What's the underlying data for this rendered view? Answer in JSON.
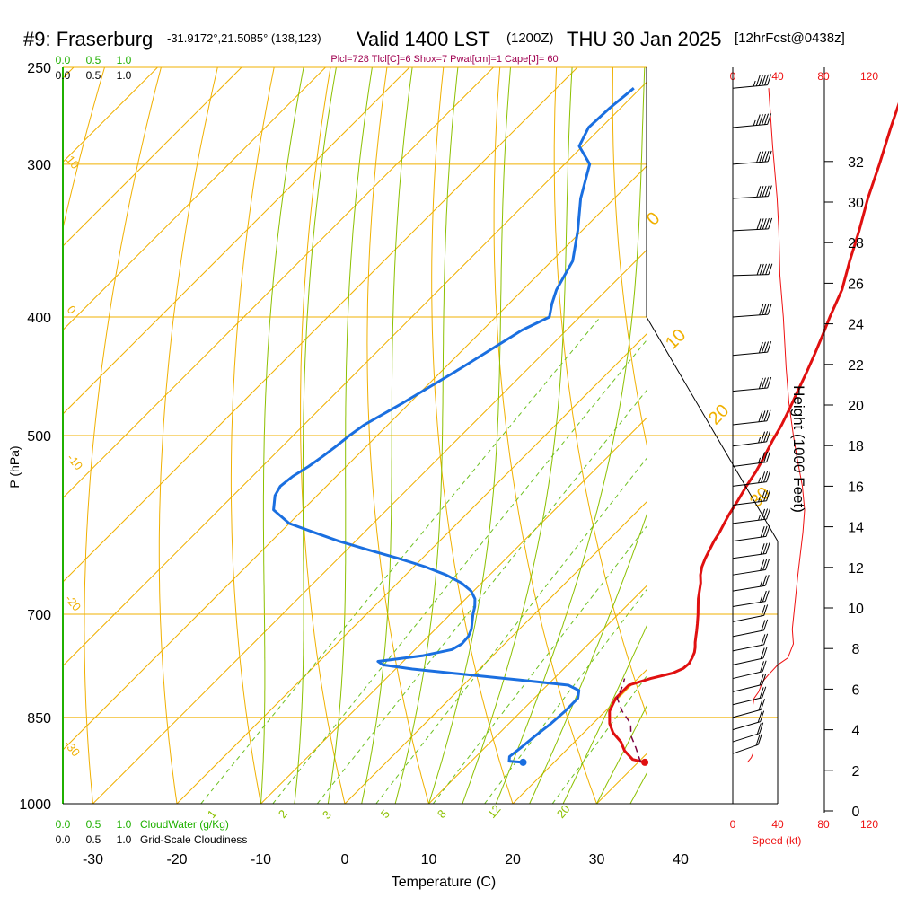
{
  "title": {
    "station": "#9: Fraserburg",
    "coords": "-31.9172°,21.5085° (138,123)",
    "valid": "Valid 1400 LST",
    "zulu": "(1200Z)",
    "date": "THU 30 Jan 2025",
    "forecast": "[12hrFcst@0438z]"
  },
  "params_line": "Plcl=728 Tlcl[C]=6 Shox=7 Pwat[cm]=1 Cape[J]= 60",
  "chart_data": {
    "type": "line",
    "subtype": "skew-t log-p sounding",
    "xlabel": "Temperature (C)",
    "ylabel": "P (hPa)",
    "right_axis_label": "Height (1000 Feet)",
    "speed_label": "Speed (kt)",
    "cloud_water_label": "CloudWater (g/Kg)",
    "cloudiness_label": "Grid-Scale Cloudiness",
    "xlim": [
      -35,
      36
    ],
    "pressure_range": [
      1000,
      250
    ],
    "x_ticks": [
      "-30",
      "-20",
      "-10",
      "0",
      "10",
      "20",
      "30",
      "40"
    ],
    "pressure_ticks": [
      "250",
      "300",
      "400",
      "500",
      "700",
      "850",
      "1000"
    ],
    "height_ticks": [
      "0",
      "2",
      "4",
      "6",
      "8",
      "10",
      "12",
      "14",
      "16",
      "18",
      "20",
      "22",
      "24",
      "26",
      "28",
      "30",
      "32"
    ],
    "speed_ticks": [
      "0",
      "40",
      "80",
      "120"
    ],
    "cloud_ticks_top": [
      "0.0",
      "0.5",
      "1.0"
    ],
    "cloud_ticks_bottom": [
      "0.0",
      "0.5",
      "1.0"
    ],
    "mixing_ratio_labels": [
      "1",
      "2",
      "3",
      "5",
      "8",
      "12",
      "20"
    ],
    "dry_adiabat_labels": [
      "10",
      "0",
      "-10",
      "-20",
      "-30"
    ],
    "moist_adiabat_labels": [
      "0",
      "10",
      "20",
      "30"
    ],
    "colors": {
      "temperature": "#e01010",
      "dewpoint": "#1a6fe0",
      "isotherm": "#f0b000",
      "dry_adiabat": "#f0b000",
      "moist_adiabat": "#8cc000",
      "mixing_ratio": "#6cc020",
      "parcel": "#7a0040",
      "title_params": "#a00050",
      "cloud": "#20b000",
      "speed": "#ee1111"
    },
    "series": [
      {
        "name": "Temperature",
        "unit": "C",
        "points": [
          [
            30.8,
            925
          ],
          [
            29,
            920
          ],
          [
            27,
            905
          ],
          [
            25.5,
            890
          ],
          [
            23.5,
            875
          ],
          [
            22,
            860
          ],
          [
            20.5,
            840
          ],
          [
            19.7,
            820
          ],
          [
            19.7,
            800
          ],
          [
            21.5,
            790
          ],
          [
            23.5,
            782
          ],
          [
            24.2,
            775
          ],
          [
            24.3,
            768
          ],
          [
            24,
            760
          ],
          [
            23.6,
            752
          ],
          [
            23.1,
            745
          ],
          [
            22.5,
            738
          ],
          [
            21.9,
            730
          ],
          [
            21.3,
            722
          ],
          [
            20.5,
            712
          ],
          [
            19.5,
            700
          ],
          [
            18.6,
            690
          ],
          [
            17.7,
            680
          ],
          [
            16.9,
            670
          ],
          [
            16.1,
            660
          ],
          [
            15.1,
            650
          ],
          [
            14.3,
            640
          ],
          [
            13.7,
            630
          ],
          [
            13.2,
            620
          ],
          [
            12.7,
            610
          ],
          [
            12.3,
            600
          ],
          [
            11.8,
            590
          ],
          [
            11.3,
            580
          ],
          [
            10.7,
            565
          ],
          [
            10,
            550
          ],
          [
            9.4,
            535
          ],
          [
            8.6,
            520
          ],
          [
            7.7,
            505
          ],
          [
            6.9,
            490
          ],
          [
            5.9,
            475
          ],
          [
            4.8,
            460
          ],
          [
            3.7,
            445
          ],
          [
            2.5,
            430
          ],
          [
            1.2,
            415
          ],
          [
            -0.2,
            400
          ],
          [
            -2,
            380
          ],
          [
            -4.5,
            360
          ],
          [
            -7,
            340
          ],
          [
            -9.8,
            320
          ],
          [
            -12.5,
            300
          ],
          [
            -15.5,
            280
          ],
          [
            -18.6,
            260
          ]
        ]
      },
      {
        "name": "Dewpoint",
        "unit": "C",
        "points": [
          [
            16.3,
            925
          ],
          [
            14.5,
            923
          ],
          [
            14,
            915
          ],
          [
            14.3,
            900
          ],
          [
            14.6,
            880
          ],
          [
            15,
            860
          ],
          [
            15.2,
            840
          ],
          [
            15.2,
            820
          ],
          [
            14.4,
            808
          ],
          [
            12.5,
            800
          ],
          [
            6,
            792
          ],
          [
            -8,
            776
          ],
          [
            -12,
            770
          ],
          [
            -13,
            765
          ],
          [
            -8.4,
            757
          ],
          [
            -5.6,
            748
          ],
          [
            -5.1,
            740
          ],
          [
            -5.2,
            730
          ],
          [
            -5.7,
            720
          ],
          [
            -6.5,
            710
          ],
          [
            -7.3,
            700
          ],
          [
            -8,
            690
          ],
          [
            -8.9,
            680
          ],
          [
            -10.3,
            670
          ],
          [
            -12.4,
            660
          ],
          [
            -15.2,
            650
          ],
          [
            -18.7,
            640
          ],
          [
            -22.9,
            630
          ],
          [
            -27.5,
            620
          ],
          [
            -32,
            610
          ],
          [
            -36,
            600
          ],
          [
            -40,
            590
          ],
          [
            -43.5,
            575
          ],
          [
            -45,
            560
          ],
          [
            -45.5,
            550
          ],
          [
            -45.2,
            540
          ],
          [
            -44.5,
            530
          ],
          [
            -44,
            520
          ],
          [
            -43.6,
            510
          ],
          [
            -43.3,
            500
          ],
          [
            -42.8,
            490
          ],
          [
            -40.8,
            470
          ],
          [
            -38,
            440
          ],
          [
            -35.3,
            410
          ],
          [
            -33.6,
            400
          ],
          [
            -34.9,
            390
          ],
          [
            -36,
            380
          ],
          [
            -37.5,
            360
          ],
          [
            -40.5,
            340
          ],
          [
            -44,
            320
          ],
          [
            -47,
            300
          ],
          [
            -50.4,
            290
          ],
          [
            -51.5,
            280
          ],
          [
            -51.3,
            270
          ],
          [
            -50.8,
            260
          ]
        ]
      },
      {
        "name": "Parcel",
        "unit": "C",
        "style": "dashed",
        "points": [
          [
            30.3,
            925
          ],
          [
            28,
            900
          ],
          [
            26,
            880
          ],
          [
            24.5,
            860
          ],
          [
            22,
            840
          ],
          [
            19.9,
            820
          ],
          [
            19,
            800
          ],
          [
            18.4,
            790
          ]
        ]
      }
    ],
    "surface_markers": [
      {
        "name": "surface-temperature",
        "temp": 30.8,
        "p": 925
      },
      {
        "name": "surface-dewpoint",
        "temp": 16.3,
        "p": 925
      }
    ],
    "height_profile_ft": [
      [
        2600,
        925
      ],
      [
        3300,
        917
      ],
      [
        3600,
        910
      ],
      [
        3600,
        830
      ],
      [
        3800,
        820
      ],
      [
        4600,
        810
      ],
      [
        5300,
        795
      ],
      [
        6300,
        785
      ],
      [
        8000,
        770
      ],
      [
        9800,
        760
      ],
      [
        10800,
        740
      ],
      [
        10600,
        720
      ],
      [
        11600,
        650
      ],
      [
        12500,
        600
      ],
      [
        12800,
        575
      ],
      [
        12400,
        550
      ],
      [
        11400,
        520
      ],
      [
        10800,
        500
      ],
      [
        10000,
        470
      ],
      [
        9500,
        440
      ],
      [
        9000,
        400
      ],
      [
        8400,
        370
      ],
      [
        8200,
        340
      ],
      [
        7900,
        320
      ],
      [
        7100,
        290
      ],
      [
        6400,
        260
      ]
    ],
    "wind_barbs": [
      {
        "p": 260,
        "dir": 255,
        "speed": 55
      },
      {
        "p": 280,
        "dir": 255,
        "speed": 55
      },
      {
        "p": 300,
        "dir": 258,
        "speed": 50
      },
      {
        "p": 320,
        "dir": 260,
        "speed": 50
      },
      {
        "p": 340,
        "dir": 262,
        "speed": 50
      },
      {
        "p": 370,
        "dir": 265,
        "speed": 50
      },
      {
        "p": 400,
        "dir": 258,
        "speed": 40
      },
      {
        "p": 430,
        "dir": 255,
        "speed": 40
      },
      {
        "p": 460,
        "dir": 255,
        "speed": 40
      },
      {
        "p": 490,
        "dir": 252,
        "speed": 40
      },
      {
        "p": 510,
        "dir": 250,
        "speed": 35
      },
      {
        "p": 530,
        "dir": 250,
        "speed": 35
      },
      {
        "p": 550,
        "dir": 250,
        "speed": 35
      },
      {
        "p": 570,
        "dir": 250,
        "speed": 35
      },
      {
        "p": 590,
        "dir": 250,
        "speed": 35
      },
      {
        "p": 610,
        "dir": 248,
        "speed": 30
      },
      {
        "p": 630,
        "dir": 248,
        "speed": 30
      },
      {
        "p": 650,
        "dir": 246,
        "speed": 30
      },
      {
        "p": 670,
        "dir": 245,
        "speed": 25
      },
      {
        "p": 690,
        "dir": 245,
        "speed": 25
      },
      {
        "p": 710,
        "dir": 240,
        "speed": 20
      },
      {
        "p": 730,
        "dir": 240,
        "speed": 20
      },
      {
        "p": 750,
        "dir": 240,
        "speed": 20
      },
      {
        "p": 770,
        "dir": 238,
        "speed": 20
      },
      {
        "p": 790,
        "dir": 236,
        "speed": 20
      },
      {
        "p": 810,
        "dir": 235,
        "speed": 20
      },
      {
        "p": 830,
        "dir": 235,
        "speed": 20
      },
      {
        "p": 850,
        "dir": 232,
        "speed": 20
      },
      {
        "p": 870,
        "dir": 230,
        "speed": 20
      },
      {
        "p": 890,
        "dir": 228,
        "speed": 20
      },
      {
        "p": 910,
        "dir": 225,
        "speed": 20
      }
    ]
  }
}
